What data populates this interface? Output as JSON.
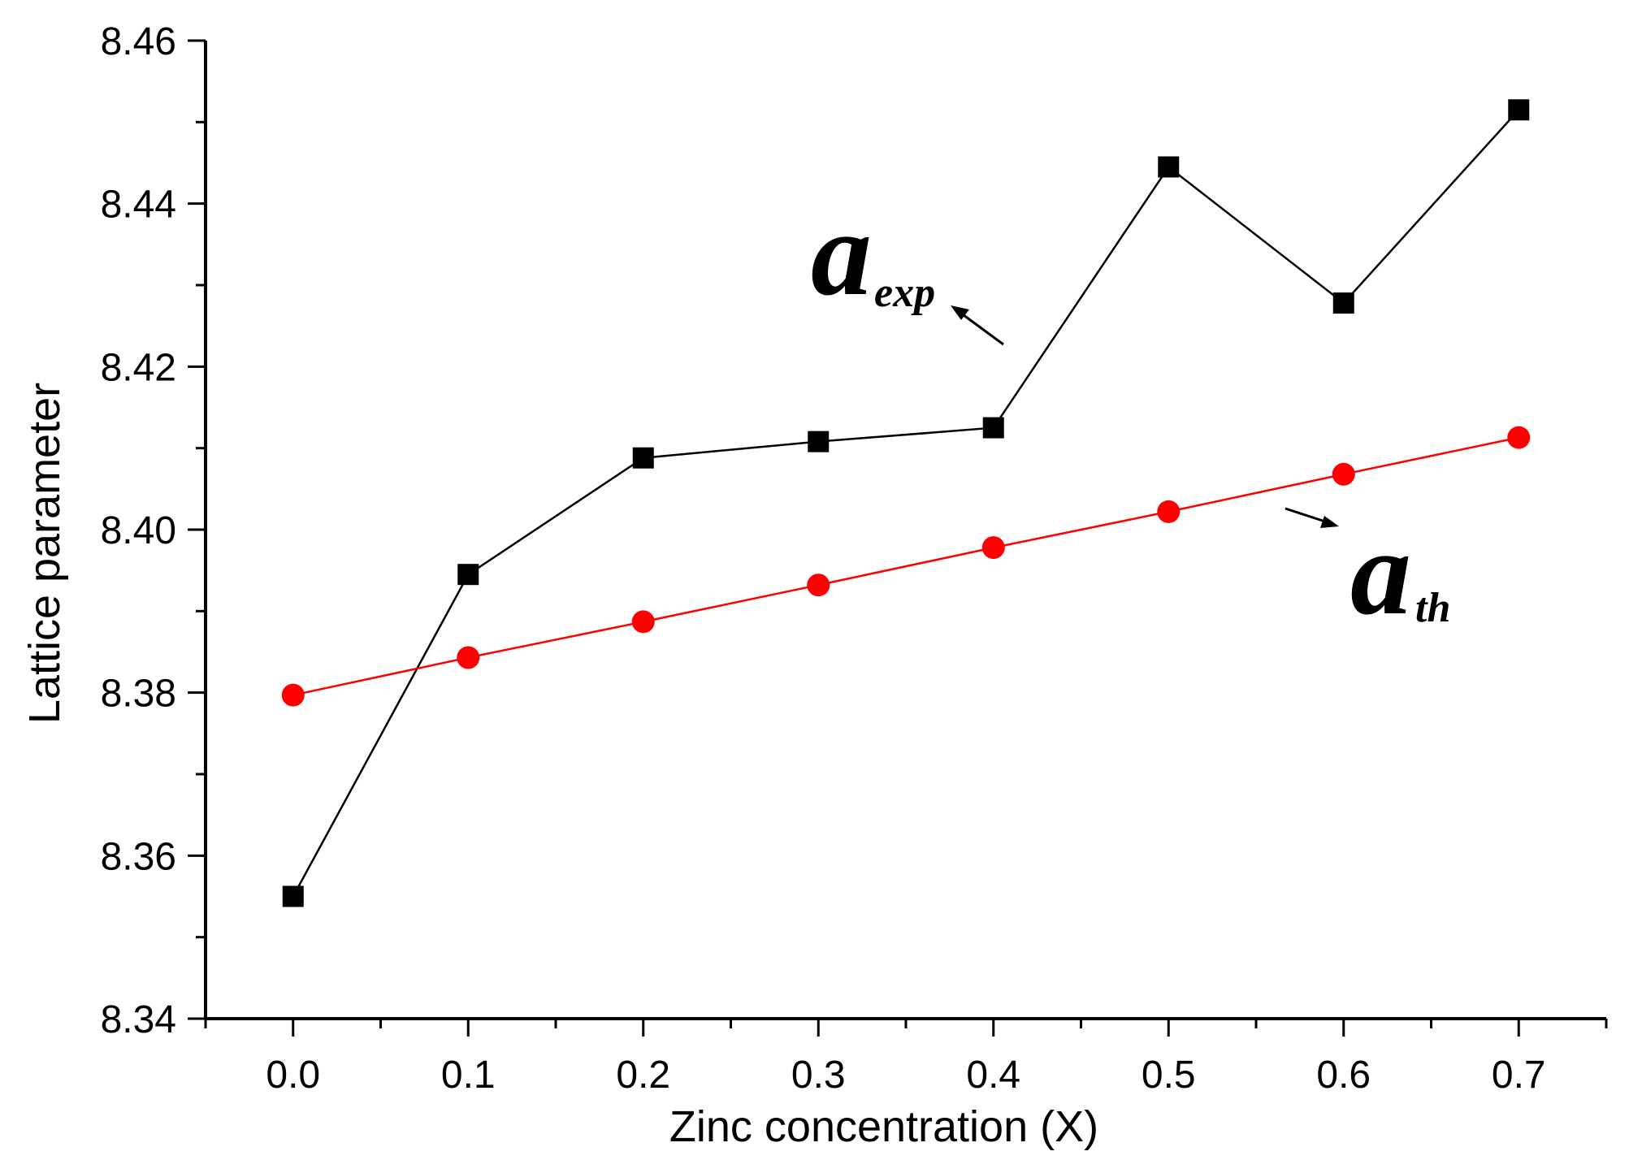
{
  "chart_data": {
    "type": "line",
    "title": "",
    "xlabel": "Zinc concentration (X)",
    "ylabel": "Lattice  parameter",
    "x": [
      0.0,
      0.1,
      0.2,
      0.3,
      0.4,
      0.5,
      0.6,
      0.7
    ],
    "x_tick_labels": [
      "0.0",
      "0.1",
      "0.2",
      "0.3",
      "0.4",
      "0.5",
      "0.6",
      "0.7"
    ],
    "y_tick_labels": [
      "8.34",
      "8.36",
      "8.38",
      "8.40",
      "8.42",
      "8.44",
      "8.46"
    ],
    "xlim": [
      -0.05,
      0.75
    ],
    "ylim": [
      8.34,
      8.46
    ],
    "grid": false,
    "series": [
      {
        "name": "a_exp",
        "label_main": "a",
        "label_sub": "exp",
        "color": "#000000",
        "marker": "square",
        "values": [
          8.355,
          8.3945,
          8.4088,
          8.4108,
          8.4125,
          8.4445,
          8.4278,
          8.4515
        ]
      },
      {
        "name": "a_th",
        "label_main": "a",
        "label_sub": "th",
        "color": "#ff0000",
        "marker": "circle",
        "values": [
          8.3797,
          8.3843,
          8.3887,
          8.3932,
          8.3978,
          8.4022,
          8.4068,
          8.4113
        ]
      }
    ]
  }
}
